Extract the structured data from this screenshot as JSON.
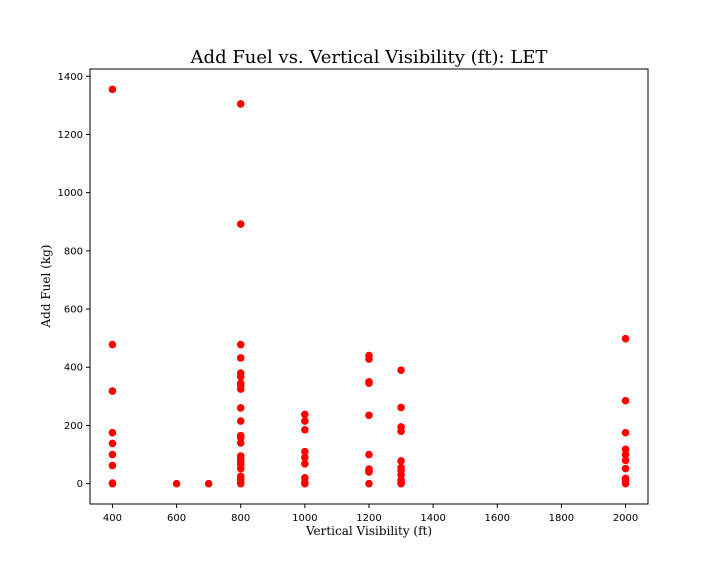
{
  "chart_data": {
    "type": "scatter",
    "title": "Add Fuel vs. Vertical Visibility (ft): LET",
    "xlabel": "Vertical Visibility (ft)",
    "ylabel": "Add Fuel (kg)",
    "xlim": [
      330,
      2070
    ],
    "ylim": [
      -70,
      1425
    ],
    "xticks": [
      400,
      600,
      800,
      1000,
      1200,
      1400,
      1600,
      1800,
      2000
    ],
    "yticks": [
      0,
      200,
      400,
      600,
      800,
      1000,
      1200,
      1400
    ],
    "grid": false,
    "marker_color": "#ff0000",
    "series": [
      {
        "points": [
          [
            400,
            1355
          ],
          [
            400,
            478
          ],
          [
            400,
            318
          ],
          [
            400,
            175
          ],
          [
            400,
            138
          ],
          [
            400,
            100
          ],
          [
            400,
            62
          ],
          [
            400,
            2
          ],
          [
            400,
            0
          ],
          [
            600,
            0
          ],
          [
            700,
            0
          ],
          [
            800,
            1305
          ],
          [
            800,
            892
          ],
          [
            800,
            478
          ],
          [
            800,
            432
          ],
          [
            800,
            380
          ],
          [
            800,
            368
          ],
          [
            800,
            345
          ],
          [
            800,
            338
          ],
          [
            800,
            325
          ],
          [
            800,
            260
          ],
          [
            800,
            215
          ],
          [
            800,
            165
          ],
          [
            800,
            158
          ],
          [
            800,
            140
          ],
          [
            800,
            95
          ],
          [
            800,
            85
          ],
          [
            800,
            75
          ],
          [
            800,
            65
          ],
          [
            800,
            52
          ],
          [
            800,
            25
          ],
          [
            800,
            15
          ],
          [
            800,
            5
          ],
          [
            800,
            0
          ],
          [
            1000,
            238
          ],
          [
            1000,
            215
          ],
          [
            1000,
            185
          ],
          [
            1000,
            110
          ],
          [
            1000,
            90
          ],
          [
            1000,
            68
          ],
          [
            1000,
            20
          ],
          [
            1000,
            5
          ],
          [
            1000,
            0
          ],
          [
            1200,
            440
          ],
          [
            1200,
            428
          ],
          [
            1200,
            350
          ],
          [
            1200,
            345
          ],
          [
            1200,
            235
          ],
          [
            1200,
            100
          ],
          [
            1200,
            50
          ],
          [
            1200,
            45
          ],
          [
            1200,
            40
          ],
          [
            1200,
            0
          ],
          [
            1300,
            390
          ],
          [
            1300,
            262
          ],
          [
            1300,
            195
          ],
          [
            1300,
            180
          ],
          [
            1300,
            78
          ],
          [
            1300,
            55
          ],
          [
            1300,
            45
          ],
          [
            1300,
            30
          ],
          [
            1300,
            12
          ],
          [
            1300,
            5
          ],
          [
            1300,
            0
          ],
          [
            2000,
            498
          ],
          [
            2000,
            285
          ],
          [
            2000,
            175
          ],
          [
            2000,
            118
          ],
          [
            2000,
            100
          ],
          [
            2000,
            80
          ],
          [
            2000,
            52
          ],
          [
            2000,
            18
          ],
          [
            2000,
            8
          ],
          [
            2000,
            0
          ]
        ]
      }
    ]
  }
}
